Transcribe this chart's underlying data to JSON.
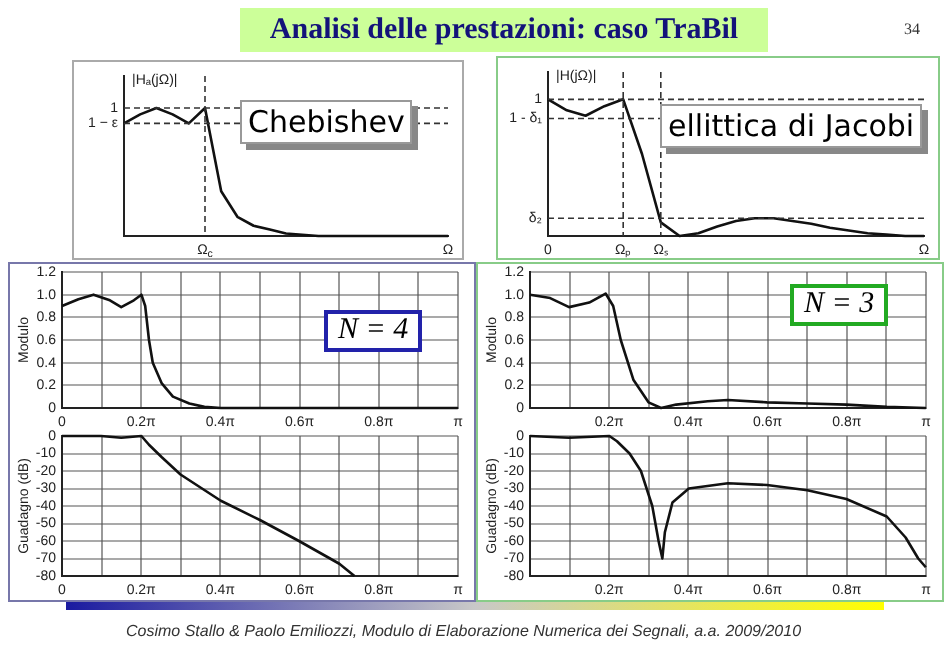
{
  "chart_data": [
    {
      "type": "line",
      "title": "Analisi delle prestazioni: caso TraBil",
      "ylabel": "|Hₐ(jΩ)|",
      "ylim": [
        0,
        1.25
      ],
      "yticks": [
        {
          "value": 1,
          "label": "1"
        },
        {
          "value": 0.88,
          "label": "1 − ε"
        }
      ],
      "categories": [
        null,
        null,
        null,
        null,
        null,
        "Ω$_{c}$",
        null,
        null,
        null,
        null,
        null,
        null,
        null,
        null,
        null,
        null,
        null,
        null,
        null,
        null,
        "Ω"
      ],
      "series": [
        {
          "color": "#111111",
          "values": [
            0.88,
            0.95,
            1.0,
            0.95,
            0.88,
            1.0,
            0.35,
            0.15,
            0.08,
            0.05,
            0.02,
            0.01,
            0,
            0,
            0,
            0,
            0,
            0,
            0,
            0,
            0
          ]
        }
      ],
      "grid": false,
      "ref_lines": [
        {
          "axis": "y",
          "value": 1,
          "line_style": "dashed"
        },
        {
          "axis": "y",
          "value": 0.88,
          "line_style": "dashed"
        },
        {
          "axis": "x",
          "value": "Ω$_{c}$",
          "line_style": "dashed"
        }
      ],
      "annotations": [
        "Chebishev",
        "34",
        "Cosimo Stallo & Paolo Emiliozzi, Modulo di Elaborazione Numerica dei Segnali, a.a. 2009/2010"
      ]
    },
    {
      "type": "line",
      "ylabel": "|H(jΩ)|",
      "ylim": [
        0,
        1.2
      ],
      "yticks": [
        {
          "value": 1,
          "label": "1"
        },
        {
          "value": 0.86,
          "label": "1 - δ₁"
        },
        {
          "value": 0.13,
          "label": "δ₂"
        }
      ],
      "categories": [
        "0",
        null,
        null,
        null,
        "Ωₚ",
        null,
        "Ωₛ",
        null,
        null,
        null,
        null,
        null,
        null,
        null,
        null,
        null,
        null,
        null,
        null,
        null,
        "Ω"
      ],
      "series": [
        {
          "color": "#111111",
          "values": [
            1.0,
            0.92,
            0.88,
            0.95,
            1.0,
            0.6,
            0.1,
            0,
            0.02,
            0.07,
            0.11,
            0.13,
            0.13,
            0.11,
            0.09,
            0.06,
            0.04,
            0.02,
            0.01,
            0,
            0
          ]
        }
      ],
      "grid": false,
      "ref_lines": [
        {
          "axis": "y",
          "value": 1,
          "line_style": "dashed"
        },
        {
          "axis": "y",
          "value": 0.86,
          "line_style": "dashed"
        },
        {
          "axis": "y",
          "value": 0.13,
          "line_style": "dashed"
        },
        {
          "axis": "x",
          "value": "Ωₚ",
          "line_style": "dashed"
        },
        {
          "axis": "x",
          "value": "Ωₛ",
          "line_style": "dashed"
        }
      ],
      "annotations": [
        "ellittica di Jacobi"
      ]
    },
    {
      "type": "line",
      "ylabel": "Modulo",
      "x": [
        0,
        0.13,
        0.25,
        0.38,
        0.47,
        0.57,
        0.63,
        0.66,
        0.69,
        0.72,
        0.79,
        0.88,
        1.01,
        1.13,
        1.26,
        1.57,
        2.2,
        3.14
      ],
      "series": [
        {
          "color": "#111111",
          "values": [
            0.9,
            0.96,
            1.0,
            0.95,
            0.89,
            0.95,
            1.0,
            0.9,
            0.6,
            0.4,
            0.22,
            0.1,
            0.04,
            0.01,
            0,
            0,
            0,
            0
          ]
        }
      ],
      "xlim": [
        0,
        3.1416
      ],
      "ylim": [
        0,
        1.2
      ],
      "xticks": [
        0,
        {
          "value": 0.3142,
          "label": null
        },
        {
          "value": 0.6283,
          "label": "0.2π"
        },
        {
          "value": 0.9425,
          "label": null
        },
        {
          "value": 1.2566,
          "label": "0.4π"
        },
        {
          "value": 1.5708,
          "label": null
        },
        {
          "value": 1.885,
          "label": "0.6π"
        },
        {
          "value": 2.1991,
          "label": null
        },
        {
          "value": 2.5133,
          "label": "0.8π"
        },
        {
          "value": 2.8274,
          "label": null
        },
        {
          "value": 3.1416,
          "label": "π"
        }
      ],
      "yticks": [
        0,
        0.2,
        0.4,
        0.6,
        0.8,
        {
          "value": 1,
          "label": "1.0"
        },
        1.2
      ],
      "grid": true,
      "annotations": [
        "N = 4"
      ]
    },
    {
      "type": "line",
      "ylabel": "Guadagno (dB)",
      "x": [
        0,
        0.31,
        0.47,
        0.63,
        0.69,
        0.79,
        0.94,
        1.26,
        1.57,
        1.88,
        2.2,
        2.32
      ],
      "series": [
        {
          "color": "#111111",
          "values": [
            0,
            0,
            -1,
            0,
            -5,
            -12,
            -22,
            -37,
            -48,
            -60,
            -73,
            -80
          ]
        }
      ],
      "xlim": [
        0,
        3.1416
      ],
      "ylim": [
        -80,
        0
      ],
      "xticks": [
        0,
        {
          "value": 0.3142,
          "label": null
        },
        {
          "value": 0.6283,
          "label": "0.2π"
        },
        {
          "value": 0.9425,
          "label": null
        },
        {
          "value": 1.2566,
          "label": "0.4π"
        },
        {
          "value": 1.5708,
          "label": null
        },
        {
          "value": 1.885,
          "label": "0.6π"
        },
        {
          "value": 2.1991,
          "label": null
        },
        {
          "value": 2.5133,
          "label": "0.8π"
        },
        {
          "value": 2.8274,
          "label": null
        },
        {
          "value": 3.1416,
          "label": "π"
        }
      ],
      "yticks": [
        0,
        -10,
        -20,
        -30,
        -40,
        -50,
        -60,
        -70,
        -80
      ],
      "grid": true
    },
    {
      "type": "line",
      "ylabel": "Modulo",
      "x": [
        0,
        0.16,
        0.31,
        0.47,
        0.6,
        0.66,
        0.72,
        0.82,
        0.94,
        1.04,
        1.16,
        1.41,
        1.57,
        1.88,
        2.2,
        2.51,
        2.83,
        3.14
      ],
      "series": [
        {
          "color": "#111111",
          "values": [
            1.0,
            0.97,
            0.89,
            0.93,
            1.01,
            0.9,
            0.6,
            0.25,
            0.05,
            0,
            0.03,
            0.06,
            0.07,
            0.05,
            0.04,
            0.03,
            0.01,
            0
          ]
        }
      ],
      "xlim": [
        0,
        3.1416
      ],
      "ylim": [
        0,
        1.2
      ],
      "xticks": [
        {
          "value": 0,
          "label": null
        },
        {
          "value": 0.3142,
          "label": null
        },
        {
          "value": 0.6283,
          "label": "0.2π"
        },
        {
          "value": 0.9425,
          "label": null
        },
        {
          "value": 1.2566,
          "label": "0.4π"
        },
        {
          "value": 1.5708,
          "label": null
        },
        {
          "value": 1.885,
          "label": "0.6π"
        },
        {
          "value": 2.1991,
          "label": null
        },
        {
          "value": 2.5133,
          "label": "0.8π"
        },
        {
          "value": 2.8274,
          "label": null
        },
        {
          "value": 3.1416,
          "label": "π"
        }
      ],
      "yticks": [
        0,
        0.2,
        0.4,
        0.6,
        0.8,
        {
          "value": 1,
          "label": "1.0"
        },
        1.2
      ],
      "grid": true,
      "annotations": [
        "N = 3"
      ]
    },
    {
      "type": "line",
      "ylabel": "Guadagno (dB)",
      "x": [
        0,
        0.31,
        0.63,
        0.69,
        0.79,
        0.88,
        0.97,
        1.02,
        1.05,
        1.07,
        1.13,
        1.26,
        1.57,
        1.88,
        2.2,
        2.51,
        2.83,
        2.98,
        3.08,
        3.14
      ],
      "series": [
        {
          "color": "#111111",
          "values": [
            0,
            -1,
            0,
            -3,
            -10,
            -20,
            -40,
            -60,
            -70,
            -55,
            -38,
            -30,
            -27,
            -28,
            -31,
            -36,
            -46,
            -58,
            -70,
            -75
          ]
        }
      ],
      "xlim": [
        0,
        3.1416
      ],
      "ylim": [
        -80,
        0
      ],
      "xticks": [
        {
          "value": 0,
          "label": null
        },
        {
          "value": 0.3142,
          "label": null
        },
        {
          "value": 0.6283,
          "label": "0.2π"
        },
        {
          "value": 0.9425,
          "label": null
        },
        {
          "value": 1.2566,
          "label": "0.4π"
        },
        {
          "value": 1.5708,
          "label": null
        },
        {
          "value": 1.885,
          "label": "0.6π"
        },
        {
          "value": 2.1991,
          "label": null
        },
        {
          "value": 2.5133,
          "label": "0.8π"
        },
        {
          "value": 2.8274,
          "label": null
        },
        {
          "value": 3.1416,
          "label": "π"
        }
      ],
      "yticks": [
        0,
        -10,
        -20,
        -30,
        -40,
        -50,
        -60,
        -70,
        -80
      ],
      "grid": true
    }
  ]
}
